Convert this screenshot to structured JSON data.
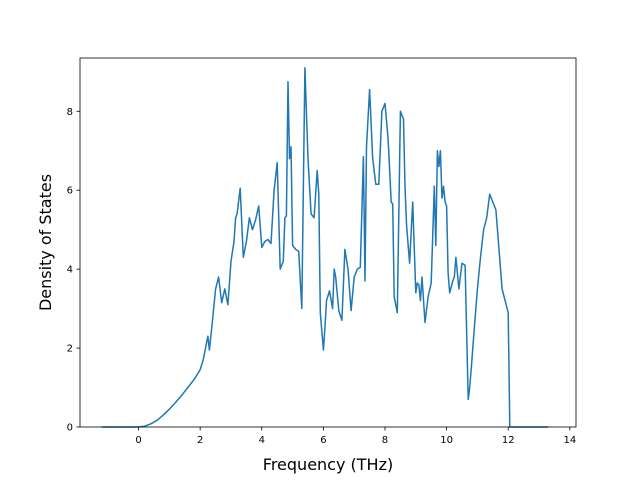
{
  "chart_data": {
    "type": "line",
    "title": "",
    "xlabel": "Frequency (THz)",
    "ylabel": "Density of States",
    "xlim": [
      -1.9,
      14.2
    ],
    "ylim": [
      0,
      9.35
    ],
    "xticks": [
      0,
      2,
      4,
      6,
      8,
      10,
      12,
      14
    ],
    "yticks": [
      0,
      2,
      4,
      6,
      8
    ],
    "grid": false,
    "line_color": "#1f77b4",
    "series": [
      {
        "x": [
          -1.2,
          -0.8,
          -0.4,
          0.0,
          0.2,
          0.4,
          0.6,
          0.8,
          1.0,
          1.2,
          1.4,
          1.6,
          1.8,
          2.0,
          2.1,
          2.2,
          2.25,
          2.3,
          2.4,
          2.5,
          2.6,
          2.7,
          2.8,
          2.9,
          3.0,
          3.1,
          3.15,
          3.2,
          3.3,
          3.4,
          3.5,
          3.6,
          3.7,
          3.8,
          3.9,
          4.0,
          4.1,
          4.2,
          4.3,
          4.4,
          4.5,
          4.6,
          4.7,
          4.75,
          4.8,
          4.85,
          4.9,
          4.95,
          5.0,
          5.1,
          5.2,
          5.3,
          5.4,
          5.5,
          5.6,
          5.7,
          5.8,
          5.85,
          5.9,
          6.0,
          6.05,
          6.1,
          6.2,
          6.3,
          6.35,
          6.4,
          6.5,
          6.6,
          6.7,
          6.8,
          6.9,
          7.0,
          7.1,
          7.2,
          7.3,
          7.35,
          7.4,
          7.5,
          7.6,
          7.7,
          7.8,
          7.9,
          8.0,
          8.1,
          8.2,
          8.25,
          8.3,
          8.4,
          8.5,
          8.6,
          8.65,
          8.7,
          8.8,
          8.9,
          9.0,
          9.05,
          9.1,
          9.15,
          9.2,
          9.3,
          9.4,
          9.5,
          9.6,
          9.65,
          9.7,
          9.75,
          9.8,
          9.85,
          9.9,
          9.95,
          10.0,
          10.05,
          10.1,
          10.2,
          10.25,
          10.3,
          10.4,
          10.5,
          10.6,
          10.7,
          10.75,
          10.8,
          10.9,
          11.0,
          11.1,
          11.2,
          11.3,
          11.4,
          11.5,
          11.6,
          11.7,
          11.8,
          11.9,
          12.0,
          12.05,
          12.1,
          12.2,
          12.5,
          13.0,
          13.3
        ],
        "y": [
          0,
          0,
          0,
          0,
          0.02,
          0.08,
          0.17,
          0.3,
          0.45,
          0.62,
          0.8,
          1.0,
          1.2,
          1.45,
          1.7,
          2.1,
          2.3,
          1.95,
          2.7,
          3.5,
          3.8,
          3.15,
          3.5,
          3.1,
          4.2,
          4.7,
          5.3,
          5.4,
          6.05,
          4.3,
          4.7,
          5.3,
          5.0,
          5.25,
          5.6,
          4.55,
          4.7,
          4.75,
          4.65,
          6.0,
          6.7,
          4.0,
          4.2,
          5.3,
          5.35,
          8.75,
          6.8,
          7.1,
          4.6,
          4.5,
          4.45,
          3.0,
          9.1,
          6.8,
          5.4,
          5.3,
          6.5,
          5.9,
          2.9,
          1.95,
          2.5,
          3.2,
          3.45,
          3.0,
          4.0,
          3.8,
          2.95,
          2.7,
          4.5,
          4.0,
          2.95,
          3.8,
          4.0,
          4.05,
          6.85,
          3.7,
          7.1,
          8.55,
          6.8,
          6.15,
          6.15,
          8.0,
          8.2,
          7.3,
          5.7,
          5.65,
          3.3,
          2.9,
          8.0,
          7.8,
          6.1,
          5.1,
          4.15,
          5.7,
          3.4,
          3.65,
          3.6,
          3.2,
          3.8,
          2.65,
          3.3,
          3.65,
          6.1,
          4.6,
          7.0,
          6.6,
          7.0,
          5.8,
          6.1,
          5.7,
          5.6,
          3.9,
          3.4,
          3.7,
          3.8,
          4.3,
          3.5,
          4.15,
          4.1,
          0.7,
          1.0,
          1.5,
          2.5,
          3.5,
          4.3,
          5.0,
          5.3,
          5.9,
          5.7,
          5.5,
          4.5,
          3.5,
          3.2,
          2.9,
          0,
          0,
          0,
          0,
          0,
          0
        ]
      }
    ]
  }
}
